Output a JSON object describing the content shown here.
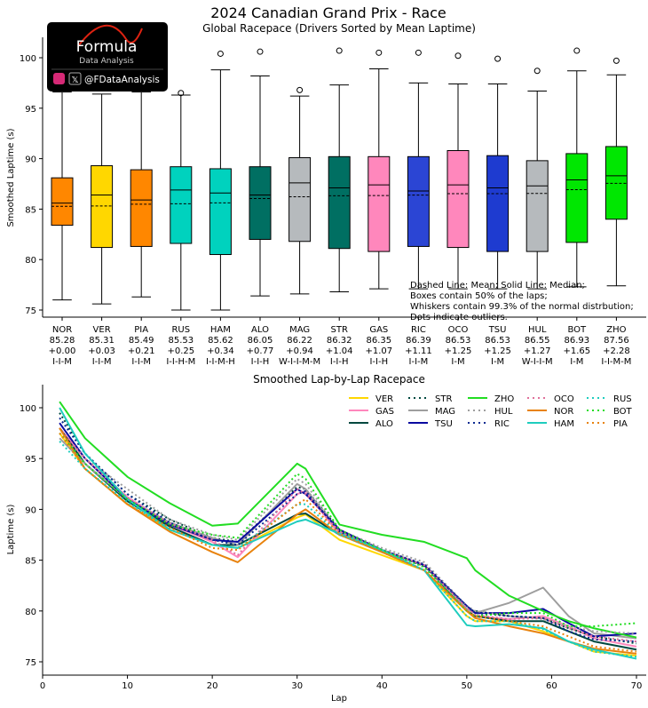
{
  "logo": {
    "brand": "Formula",
    "sub": "Data Analysis",
    "handle": "@FDataAnalysis"
  },
  "chart_data": [
    {
      "type": "box",
      "title": "2024 Canadian Grand Prix - Race",
      "subtitle": "Global Racepace (Drivers Sorted by Mean Laptime)",
      "ylabel": "Smoothed Laptime (s)",
      "ylim": [
        74,
        102
      ],
      "yticks": [
        75,
        80,
        85,
        90,
        95,
        100
      ],
      "notes": [
        "Dashed Line: Mean; Solid Line: Median;",
        "Boxes contain 50% of the laps;",
        "Whiskers contain 99.3% of the normal distrbution;",
        "Dots indicate outliers."
      ],
      "drivers": [
        {
          "name": "NOR",
          "mean_label": "85.28",
          "gap": "+0.00",
          "strategy": "I-I-M",
          "color": "#FF8700",
          "low": 76.0,
          "q1": 83.4,
          "median": 85.6,
          "mean": 85.28,
          "q3": 88.1,
          "high": 96.6,
          "outliers": []
        },
        {
          "name": "VER",
          "mean_label": "85.31",
          "gap": "+0.03",
          "strategy": "I-I-M",
          "color": "#FFD700",
          "low": 75.6,
          "q1": 81.2,
          "median": 86.4,
          "mean": 85.31,
          "q3": 89.3,
          "high": 96.4,
          "outliers": []
        },
        {
          "name": "PIA",
          "mean_label": "85.49",
          "gap": "+0.21",
          "strategy": "I-I-M",
          "color": "#FF8700",
          "low": 76.3,
          "q1": 81.3,
          "median": 85.9,
          "mean": 85.49,
          "q3": 88.9,
          "high": 96.6,
          "outliers": []
        },
        {
          "name": "RUS",
          "mean_label": "85.53",
          "gap": "+0.25",
          "strategy": "I-I-H-M",
          "color": "#00D2BE",
          "low": 75.0,
          "q1": 81.6,
          "median": 86.9,
          "mean": 85.53,
          "q3": 89.2,
          "high": 96.3,
          "outliers": [
            96.5
          ]
        },
        {
          "name": "HAM",
          "mean_label": "85.62",
          "gap": "+0.34",
          "strategy": "I-I-M-H",
          "color": "#00D2BE",
          "low": 75.0,
          "q1": 80.5,
          "median": 86.6,
          "mean": 85.62,
          "q3": 89.0,
          "high": 98.8,
          "outliers": [
            100.4
          ]
        },
        {
          "name": "ALO",
          "mean_label": "86.05",
          "gap": "+0.77",
          "strategy": "I-I-H",
          "color": "#006F62",
          "low": 76.4,
          "q1": 82.0,
          "median": 86.4,
          "mean": 86.05,
          "q3": 89.2,
          "high": 98.2,
          "outliers": [
            100.6
          ]
        },
        {
          "name": "MAG",
          "mean_label": "86.22",
          "gap": "+0.94",
          "strategy": "W-I-I-M-M",
          "color": "#B6BABD",
          "low": 76.6,
          "q1": 81.8,
          "median": 87.6,
          "mean": 86.22,
          "q3": 90.1,
          "high": 96.2,
          "outliers": [
            96.8
          ]
        },
        {
          "name": "STR",
          "mean_label": "86.32",
          "gap": "+1.04",
          "strategy": "I-I-H",
          "color": "#006F62",
          "low": 76.8,
          "q1": 81.1,
          "median": 87.1,
          "mean": 86.32,
          "q3": 90.2,
          "high": 97.3,
          "outliers": [
            100.7
          ]
        },
        {
          "name": "GAS",
          "mean_label": "86.35",
          "gap": "+1.07",
          "strategy": "I-I-H",
          "color": "#FF87BC",
          "low": 77.1,
          "q1": 80.8,
          "median": 87.4,
          "mean": 86.35,
          "q3": 90.2,
          "high": 98.9,
          "outliers": [
            100.5
          ]
        },
        {
          "name": "RIC",
          "mean_label": "86.39",
          "gap": "+1.11",
          "strategy": "I-I-M",
          "color": "#2B45D4",
          "low": 77.1,
          "q1": 81.3,
          "median": 86.8,
          "mean": 86.39,
          "q3": 90.2,
          "high": 97.5,
          "outliers": [
            100.5
          ]
        },
        {
          "name": "OCO",
          "mean_label": "86.53",
          "gap": "+1.25",
          "strategy": "I-M",
          "color": "#FF87BC",
          "low": 77.1,
          "q1": 81.2,
          "median": 87.4,
          "mean": 86.53,
          "q3": 90.8,
          "high": 97.4,
          "outliers": [
            100.2
          ]
        },
        {
          "name": "TSU",
          "mean_label": "86.53",
          "gap": "+1.25",
          "strategy": "I-M",
          "color": "#1E3BD0",
          "low": 77.1,
          "q1": 80.8,
          "median": 87.1,
          "mean": 86.53,
          "q3": 90.3,
          "high": 97.4,
          "outliers": [
            99.9
          ]
        },
        {
          "name": "HUL",
          "mean_label": "86.55",
          "gap": "+1.27",
          "strategy": "W-I-I-M",
          "color": "#B6BABD",
          "low": 77.1,
          "q1": 80.8,
          "median": 87.3,
          "mean": 86.55,
          "q3": 89.8,
          "high": 96.7,
          "outliers": [
            98.7
          ]
        },
        {
          "name": "BOT",
          "mean_label": "86.93",
          "gap": "+1.65",
          "strategy": "I-M",
          "color": "#00E701",
          "low": 77.3,
          "q1": 81.7,
          "median": 87.9,
          "mean": 86.93,
          "q3": 90.5,
          "high": 98.7,
          "outliers": [
            100.7
          ]
        },
        {
          "name": "ZHO",
          "mean_label": "87.56",
          "gap": "+2.28",
          "strategy": "I-I-M-M",
          "color": "#00E701",
          "low": 77.4,
          "q1": 84.0,
          "median": 88.3,
          "mean": 87.56,
          "q3": 91.2,
          "high": 98.3,
          "outliers": [
            99.7
          ]
        }
      ]
    },
    {
      "type": "line",
      "title": "Smoothed Lap-by-Lap Racepace",
      "xlabel": "Lap",
      "ylabel": "Laptime (s)",
      "xlim": [
        0,
        70
      ],
      "ylim": [
        74.5,
        102.3
      ],
      "xticks": [
        0,
        10,
        20,
        30,
        40,
        50,
        60,
        70
      ],
      "yticks": [
        75,
        80,
        85,
        90,
        95,
        100
      ],
      "legend": "top-right",
      "x": [
        2,
        5,
        10,
        15,
        20,
        23,
        30,
        31,
        35,
        40,
        45,
        50,
        51,
        55,
        59,
        62,
        65,
        70
      ],
      "series": [
        {
          "name": "VER",
          "color": "#FFD700",
          "style": "solid",
          "values": [
            97.5,
            94,
            90.5,
            88,
            86.5,
            86.2,
            89.2,
            89.5,
            87,
            85.5,
            84,
            79.5,
            79,
            79,
            78,
            77,
            76,
            75.6
          ]
        },
        {
          "name": "GAS",
          "color": "#FF87BC",
          "style": "solid",
          "values": [
            98,
            95,
            91.2,
            88.5,
            86.8,
            85.3,
            91.5,
            91.8,
            87.5,
            85.8,
            84,
            80,
            79.5,
            79.2,
            79.5,
            78.5,
            77.3,
            76.5
          ]
        },
        {
          "name": "ALO",
          "color": "#00483F",
          "style": "solid",
          "values": [
            98,
            94.5,
            90.8,
            88.3,
            86.5,
            86.5,
            89.5,
            89.6,
            87.5,
            86,
            84.5,
            80,
            79.5,
            79,
            79,
            78,
            77,
            76.2
          ]
        },
        {
          "name": "STR",
          "color": "#00483F",
          "style": "dotted",
          "values": [
            99.5,
            95.5,
            91.5,
            89,
            87.2,
            86.8,
            92.2,
            92,
            88,
            86,
            84.4,
            80.2,
            80,
            79.5,
            79.3,
            78.3,
            77.5,
            76.8
          ]
        },
        {
          "name": "MAG",
          "color": "#9E9E9E",
          "style": "solid",
          "values": [
            97,
            94.5,
            91,
            88.7,
            87.2,
            86.5,
            92.5,
            92,
            87.8,
            86,
            84.5,
            80.2,
            79.8,
            80.8,
            82.3,
            79.5,
            77.8,
            77.3
          ]
        },
        {
          "name": "TSU",
          "color": "#0A0AA0",
          "style": "solid",
          "values": [
            98.5,
            95,
            91,
            88.5,
            87,
            86.8,
            92,
            91.5,
            88,
            86,
            84.5,
            80.5,
            79.8,
            79.8,
            80.2,
            78.8,
            77.5,
            77.8
          ]
        },
        {
          "name": "ZHO",
          "color": "#22DD22",
          "style": "solid",
          "values": [
            100.6,
            97,
            93.2,
            90.6,
            88.4,
            88.6,
            94.5,
            94,
            88.5,
            87.5,
            86.8,
            85.2,
            84,
            81.5,
            80,
            79,
            78.3,
            77.4
          ]
        },
        {
          "name": "HUL",
          "color": "#9E9E9E",
          "style": "dotted",
          "values": [
            97.5,
            95,
            92,
            89,
            87.5,
            87,
            93,
            92.5,
            88,
            86.2,
            84.8,
            80.5,
            80,
            79.5,
            79.2,
            78.5,
            78,
            77.8
          ]
        },
        {
          "name": "RIC",
          "color": "#0A2A90",
          "style": "dotted",
          "values": [
            99,
            95.5,
            91.5,
            88.7,
            87,
            86.5,
            91.5,
            91.8,
            87.8,
            86,
            84.6,
            80.5,
            79.8,
            79.5,
            79.3,
            78,
            77.2,
            77
          ]
        },
        {
          "name": "OCO",
          "color": "#E0709A",
          "style": "dotted",
          "values": [
            98,
            95,
            91.2,
            88.6,
            87,
            85.5,
            92,
            91.5,
            87.8,
            86,
            84.5,
            80.3,
            79.6,
            79.2,
            79.3,
            78.3,
            77.5,
            77
          ]
        },
        {
          "name": "NOR",
          "color": "#E8820C",
          "style": "solid",
          "values": [
            98,
            94,
            90.5,
            87.8,
            85.8,
            84.8,
            89.5,
            90,
            87.5,
            85.8,
            84,
            80,
            79.3,
            78.5,
            77.8,
            77,
            76.3,
            75.8
          ]
        },
        {
          "name": "HAM",
          "color": "#1ECDBE",
          "style": "solid",
          "values": [
            100,
            95.5,
            91,
            88,
            86.5,
            86.2,
            88.8,
            89,
            87.6,
            86,
            84,
            78.6,
            78.5,
            78.7,
            78.3,
            77,
            76.2,
            75.3
          ]
        },
        {
          "name": "RUS",
          "color": "#1ECDBE",
          "style": "dotted",
          "values": [
            96.7,
            94,
            90.7,
            88,
            86.5,
            86.2,
            90.5,
            90.5,
            87.5,
            85.8,
            84,
            79.5,
            79,
            79,
            78.2,
            77,
            76,
            75.5
          ]
        },
        {
          "name": "BOT",
          "color": "#22DD22",
          "style": "dotted",
          "values": [
            97.5,
            94.5,
            91,
            88.5,
            87.5,
            87.2,
            93.5,
            93,
            88,
            86,
            84.3,
            80,
            79.5,
            79.8,
            79.8,
            78.5,
            78.5,
            78.8
          ]
        },
        {
          "name": "PIA",
          "color": "#E8820C",
          "style": "dotted",
          "values": [
            97.5,
            94,
            90.5,
            88.2,
            86.2,
            86,
            90.5,
            91,
            87.6,
            85.8,
            84,
            80,
            79.5,
            79,
            78.5,
            77.5,
            76.5,
            76
          ]
        }
      ]
    }
  ]
}
